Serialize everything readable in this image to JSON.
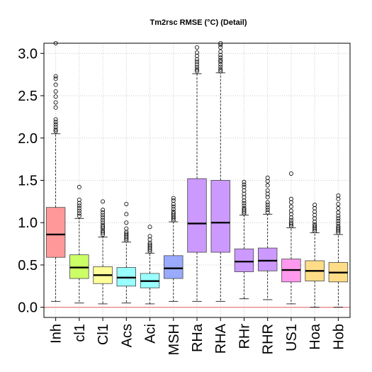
{
  "chart_data": {
    "type": "boxplot",
    "title": "Tm2rsc RMSE (°C) (Detail)",
    "xlabel": "",
    "ylabel": "",
    "ylim": [
      -0.12,
      3.12
    ],
    "yticks": [
      0.0,
      0.5,
      1.0,
      1.5,
      2.0,
      2.5,
      3.0
    ],
    "ytick_labels": [
      "0.0",
      "0.5",
      "1.0",
      "1.5",
      "2.0",
      "2.5",
      "3.0"
    ],
    "grid": true,
    "reference_line": {
      "y": 0,
      "color": "#e07070"
    },
    "categories": [
      "Inh",
      "cl1",
      "Cl1",
      "Acs",
      "Aci",
      "MSH",
      "RHa",
      "RHA",
      "RHr",
      "RHR",
      "US1",
      "Hoa",
      "Hob"
    ],
    "colors": [
      "#ff9999",
      "#ccff66",
      "#ffff99",
      "#99ffff",
      "#99ffff",
      "#99aaff",
      "#cc99ff",
      "#cc99ff",
      "#cc99ff",
      "#cc99ff",
      "#ff99ee",
      "#ffdd88",
      "#ffdd88"
    ],
    "boxes": [
      {
        "name": "Inh",
        "whisker_low": 0.07,
        "q1": 0.59,
        "median": 0.86,
        "q3": 1.18,
        "whisker_high": 2.05,
        "outliers": [
          2.08,
          2.1,
          2.13,
          2.16,
          2.19,
          2.22,
          2.36,
          2.42,
          2.49,
          2.55,
          2.63,
          2.7,
          2.73,
          3.12
        ]
      },
      {
        "name": "cl1",
        "whisker_low": 0.05,
        "q1": 0.34,
        "median": 0.47,
        "q3": 0.62,
        "whisker_high": 1.05,
        "outliers": [
          1.08,
          1.11,
          1.14,
          1.17,
          1.2,
          1.23,
          1.27,
          1.42
        ]
      },
      {
        "name": "Cl1",
        "whisker_low": 0.04,
        "q1": 0.28,
        "median": 0.38,
        "q3": 0.48,
        "whisker_high": 0.83,
        "outliers": [
          0.86,
          0.88,
          0.9,
          0.93,
          0.95,
          0.97,
          1.0,
          1.03,
          1.06,
          1.09,
          1.12,
          1.15,
          1.25
        ]
      },
      {
        "name": "Acs",
        "whisker_low": 0.05,
        "q1": 0.25,
        "median": 0.35,
        "q3": 0.47,
        "whisker_high": 0.77,
        "outliers": [
          0.79,
          0.81,
          0.83,
          0.85,
          0.87,
          0.89,
          0.93,
          1.0,
          1.1,
          1.22
        ]
      },
      {
        "name": "Aci",
        "whisker_low": 0.04,
        "q1": 0.23,
        "median": 0.31,
        "q3": 0.4,
        "whisker_high": 0.64,
        "outliers": [
          0.66,
          0.68,
          0.7,
          0.72,
          0.74,
          0.76,
          0.8,
          0.84,
          0.95
        ]
      },
      {
        "name": "MSH",
        "whisker_low": 0.07,
        "q1": 0.34,
        "median": 0.46,
        "q3": 0.61,
        "whisker_high": 1.01,
        "outliers": [
          1.03,
          1.05,
          1.07,
          1.09,
          1.11,
          1.13,
          1.16,
          1.19,
          1.22,
          1.26,
          1.29
        ]
      },
      {
        "name": "RHa",
        "whisker_low": 0.07,
        "q1": 0.65,
        "median": 0.99,
        "q3": 1.52,
        "whisker_high": 2.76,
        "outliers": [
          2.79,
          2.81,
          2.84,
          2.87,
          2.9,
          2.93,
          2.97,
          3.01,
          3.07
        ]
      },
      {
        "name": "RHA",
        "whisker_low": 0.07,
        "q1": 0.65,
        "median": 1.0,
        "q3": 1.5,
        "whisker_high": 2.77,
        "outliers": [
          2.79,
          2.81,
          2.84,
          2.87,
          2.9,
          2.92,
          2.95,
          2.98,
          3.02,
          3.07,
          3.1,
          3.12
        ]
      },
      {
        "name": "RHr",
        "whisker_low": 0.1,
        "q1": 0.42,
        "median": 0.54,
        "q3": 0.69,
        "whisker_high": 1.09,
        "outliers": [
          1.11,
          1.13,
          1.15,
          1.17,
          1.2,
          1.23,
          1.26,
          1.3,
          1.34,
          1.38,
          1.42,
          1.45,
          1.48
        ]
      },
      {
        "name": "RHR",
        "whisker_low": 0.09,
        "q1": 0.43,
        "median": 0.55,
        "q3": 0.7,
        "whisker_high": 1.1,
        "outliers": [
          1.12,
          1.15,
          1.18,
          1.21,
          1.24,
          1.3,
          1.34,
          1.38,
          1.44,
          1.49,
          1.53
        ]
      },
      {
        "name": "US1",
        "whisker_low": 0.04,
        "q1": 0.3,
        "median": 0.44,
        "q3": 0.57,
        "whisker_high": 0.94,
        "outliers": [
          0.96,
          0.98,
          1.0,
          1.03,
          1.06,
          1.1,
          1.14,
          1.19,
          1.24,
          1.28,
          1.58
        ]
      },
      {
        "name": "Hoa",
        "whisker_low": 0.0,
        "q1": 0.31,
        "median": 0.43,
        "q3": 0.55,
        "whisker_high": 0.88,
        "outliers": [
          0.9,
          0.92,
          0.94,
          0.96,
          0.98,
          1.01,
          1.05,
          1.09,
          1.13,
          1.17,
          1.21
        ]
      },
      {
        "name": "Hob",
        "whisker_low": 0.0,
        "q1": 0.3,
        "median": 0.41,
        "q3": 0.53,
        "whisker_high": 0.86,
        "outliers": [
          0.88,
          0.9,
          0.92,
          0.94,
          0.96,
          0.99,
          1.02,
          1.05,
          1.08,
          1.12,
          1.17,
          1.22,
          1.28,
          1.32
        ]
      }
    ]
  }
}
